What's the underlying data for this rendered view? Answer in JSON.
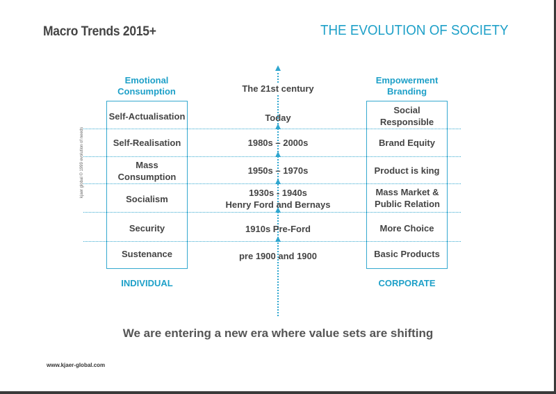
{
  "header": {
    "title_left": "Macro Trends 2015+",
    "title_right": "THE EVOLUTION OF SOCIETY"
  },
  "left_column": {
    "heading_line1": "Emotional",
    "heading_line2": "Consumption",
    "rows": [
      "Self-Actualisation",
      "Self-Realisation",
      "Mass Consumption",
      "Socialism",
      "Security",
      "Sustenance"
    ],
    "footer": "INDIVIDUAL"
  },
  "center_column": {
    "top_label": "The 21st century",
    "rows": [
      "Today",
      "1980s – 2000s",
      "1950s – 1970s",
      "1930s - 1940s\nHenry Ford and Bernays",
      "1910s Pre-Ford",
      "pre 1900 and 1900"
    ]
  },
  "right_column": {
    "heading_line1": "Empowerment",
    "heading_line2": "Branding",
    "rows": [
      "Social Responsible",
      "Brand Equity",
      "Product is king",
      "Mass Market & Public Relation",
      "More Choice",
      "Basic Products"
    ],
    "footer": "CORPORATE"
  },
  "side_credit": "kjaer global © 1999 evolution of needs",
  "footer": {
    "message": "We are entering a new era where value sets are shifting",
    "url": "www.kjaer-global.com"
  },
  "colors": {
    "accent": "#1ea0c8",
    "text": "#444444"
  }
}
